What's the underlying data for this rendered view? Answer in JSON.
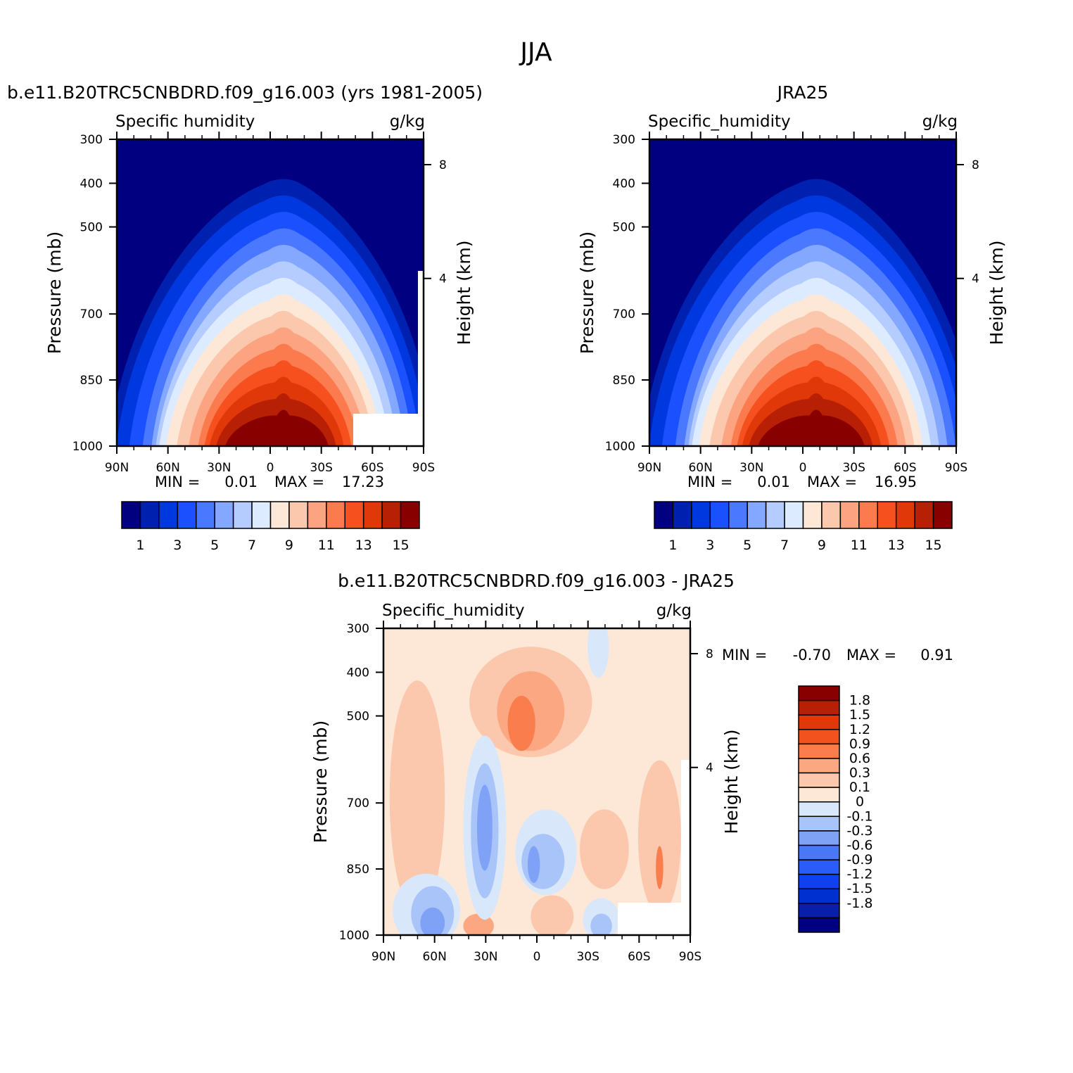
{
  "figure_title": "JJA",
  "colors": {
    "abs_levels": [
      "#000080",
      "#0020b0",
      "#0038e0",
      "#1a50ff",
      "#4a78ff",
      "#84a8ff",
      "#b4ccff",
      "#dcebff",
      "#fde8d8",
      "#fcc8ad",
      "#fca482",
      "#fb7b4e",
      "#f5501e",
      "#e03808",
      "#b82005",
      "#880000"
    ],
    "diff_levels": [
      "#000080",
      "#0a1fa8",
      "#0030d0",
      "#1040f0",
      "#2a5cf8",
      "#4a78f5",
      "#7fa2f7",
      "#a8c4f8",
      "#d8e8fa",
      "#fde8d8",
      "#fcc8ad",
      "#fba882",
      "#fa7d4e",
      "#f2521e",
      "#e03808",
      "#b82005",
      "#880000"
    ]
  },
  "panels": [
    {
      "title": "b.e11.B20TRC5CNBDRD.f09_g16.003 (yrs 1981-2005)",
      "left_label": "Specific humidity",
      "right_label": "g/kg",
      "ylabel": "Pressure (mb)",
      "ylabel_right": "Height (km)",
      "min_label": "MIN =",
      "min_value": "0.01",
      "max_label": "MAX =",
      "max_value": "17.23"
    },
    {
      "title": "JRA25",
      "left_label": "Specific_humidity",
      "right_label": "g/kg",
      "ylabel": "Pressure (mb)",
      "ylabel_right": "Height (km)",
      "min_label": "MIN =",
      "min_value": "0.01",
      "max_label": "MAX =",
      "max_value": "16.95"
    },
    {
      "title": "b.e11.B20TRC5CNBDRD.f09_g16.003 - JRA25",
      "left_label": "Specific_humidity",
      "right_label": "g/kg",
      "ylabel": "Pressure (mb)",
      "ylabel_right": "Height (km)",
      "min_label": "MIN =",
      "min_value": "-0.70",
      "max_label": "MAX =",
      "max_value": "0.91"
    }
  ],
  "colorbar_abs": {
    "labels": [
      "1",
      "3",
      "5",
      "7",
      "9",
      "11",
      "13",
      "15"
    ]
  },
  "colorbar_diff": {
    "labels": [
      "1.8",
      "1.5",
      "1.2",
      "0.9",
      "0.6",
      "0.3",
      "0.1",
      "0",
      "-0.1",
      "-0.3",
      "-0.6",
      "-0.9",
      "-1.2",
      "-1.5",
      "-1.8"
    ]
  },
  "chart_data": [
    {
      "type": "heatmap",
      "title": "b.e11.B20TRC5CNBDRD.f09_g16.003 (yrs 1981-2005)",
      "x_ticks": [
        "90N",
        "60N",
        "30N",
        "0",
        "30S",
        "60S",
        "90S"
      ],
      "y_ticks": [
        "300",
        "400",
        "500",
        "700",
        "850",
        "1000"
      ],
      "y_right_ticks": [
        "8",
        "4"
      ],
      "xlim": [
        90,
        -90
      ],
      "ylim": [
        1000,
        300
      ],
      "levels": [
        1,
        2,
        3,
        4,
        5,
        6,
        7,
        8,
        9,
        10,
        11,
        12,
        13,
        14,
        15
      ],
      "peak": {
        "lat": -8,
        "value": 17.23
      },
      "min": 0.01,
      "max": 17.23
    },
    {
      "type": "heatmap",
      "title": "JRA25",
      "x_ticks": [
        "90N",
        "60N",
        "30N",
        "0",
        "30S",
        "60S",
        "90S"
      ],
      "y_ticks": [
        "300",
        "400",
        "500",
        "700",
        "850",
        "1000"
      ],
      "y_right_ticks": [
        "8",
        "4"
      ],
      "xlim": [
        90,
        -90
      ],
      "ylim": [
        1000,
        300
      ],
      "levels": [
        1,
        2,
        3,
        4,
        5,
        6,
        7,
        8,
        9,
        10,
        11,
        12,
        13,
        14,
        15
      ],
      "peak": {
        "lat": -8,
        "value": 16.95
      },
      "min": 0.01,
      "max": 16.95
    },
    {
      "type": "heatmap",
      "title": "b.e11.B20TRC5CNBDRD.f09_g16.003 - JRA25",
      "x_ticks": [
        "90N",
        "60N",
        "30N",
        "0",
        "30S",
        "60S",
        "90S"
      ],
      "y_ticks": [
        "300",
        "400",
        "500",
        "700",
        "850",
        "1000"
      ],
      "y_right_ticks": [
        "8",
        "4"
      ],
      "xlim": [
        90,
        -90
      ],
      "ylim": [
        1000,
        300
      ],
      "levels": [
        -1.8,
        -1.5,
        -1.2,
        -0.9,
        -0.6,
        -0.3,
        -0.1,
        0,
        0.1,
        0.3,
        0.6,
        0.9,
        1.2,
        1.5,
        1.8
      ],
      "min": -0.7,
      "max": 0.91
    }
  ]
}
